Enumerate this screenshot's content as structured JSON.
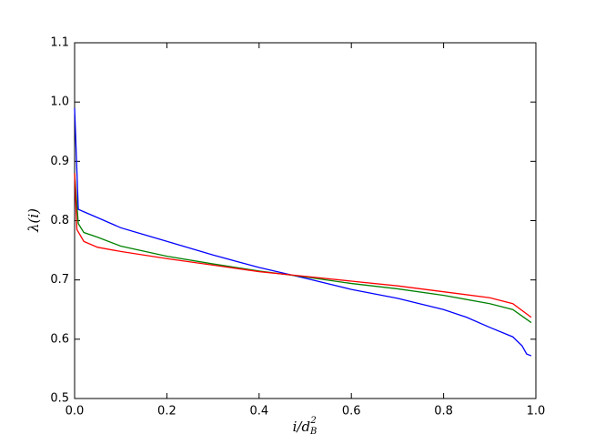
{
  "chart_data": {
    "type": "line",
    "xlabel": "i/d",
    "xlabel_sub": "B",
    "xlabel_sup": "2",
    "ylabel": "λ(i)",
    "xlim": [
      0,
      1
    ],
    "ylim": [
      0.5,
      1.1
    ],
    "xticks": [
      {
        "value": 0,
        "label": "0.0"
      },
      0.2,
      0.4,
      0.6,
      0.8,
      {
        "value": 1,
        "label": "1.0"
      }
    ],
    "yticks": [
      0.5,
      0.6,
      0.7,
      0.8,
      0.9,
      {
        "value": 1,
        "label": "1.0"
      },
      1.1
    ],
    "series": [
      {
        "color": "#0000ff",
        "x": [
          0,
          0.008,
          0.02,
          0.05,
          0.1,
          0.2,
          0.3,
          0.4,
          0.5,
          0.6,
          0.7,
          0.8,
          0.85,
          0.9,
          0.95,
          0.97,
          0.98,
          0.99
        ],
        "values": [
          0.99,
          0.819,
          0.815,
          0.805,
          0.788,
          0.765,
          0.742,
          0.721,
          0.703,
          0.684,
          0.669,
          0.65,
          0.637,
          0.62,
          0.604,
          0.589,
          0.575,
          0.572
        ]
      },
      {
        "color": "#008000",
        "x": [
          0,
          0.008,
          0.02,
          0.05,
          0.1,
          0.2,
          0.3,
          0.4,
          0.5,
          0.6,
          0.7,
          0.8,
          0.9,
          0.95,
          0.99
        ],
        "values": [
          0.88,
          0.795,
          0.78,
          0.772,
          0.757,
          0.74,
          0.727,
          0.715,
          0.705,
          0.694,
          0.685,
          0.674,
          0.66,
          0.65,
          0.628
        ]
      },
      {
        "color": "#ff0000",
        "x": [
          0,
          0.005,
          0.02,
          0.05,
          0.1,
          0.2,
          0.3,
          0.4,
          0.5,
          0.6,
          0.7,
          0.8,
          0.9,
          0.95,
          0.99
        ],
        "values": [
          0.88,
          0.785,
          0.765,
          0.755,
          0.748,
          0.736,
          0.725,
          0.714,
          0.706,
          0.698,
          0.69,
          0.68,
          0.67,
          0.66,
          0.637
        ]
      }
    ]
  }
}
